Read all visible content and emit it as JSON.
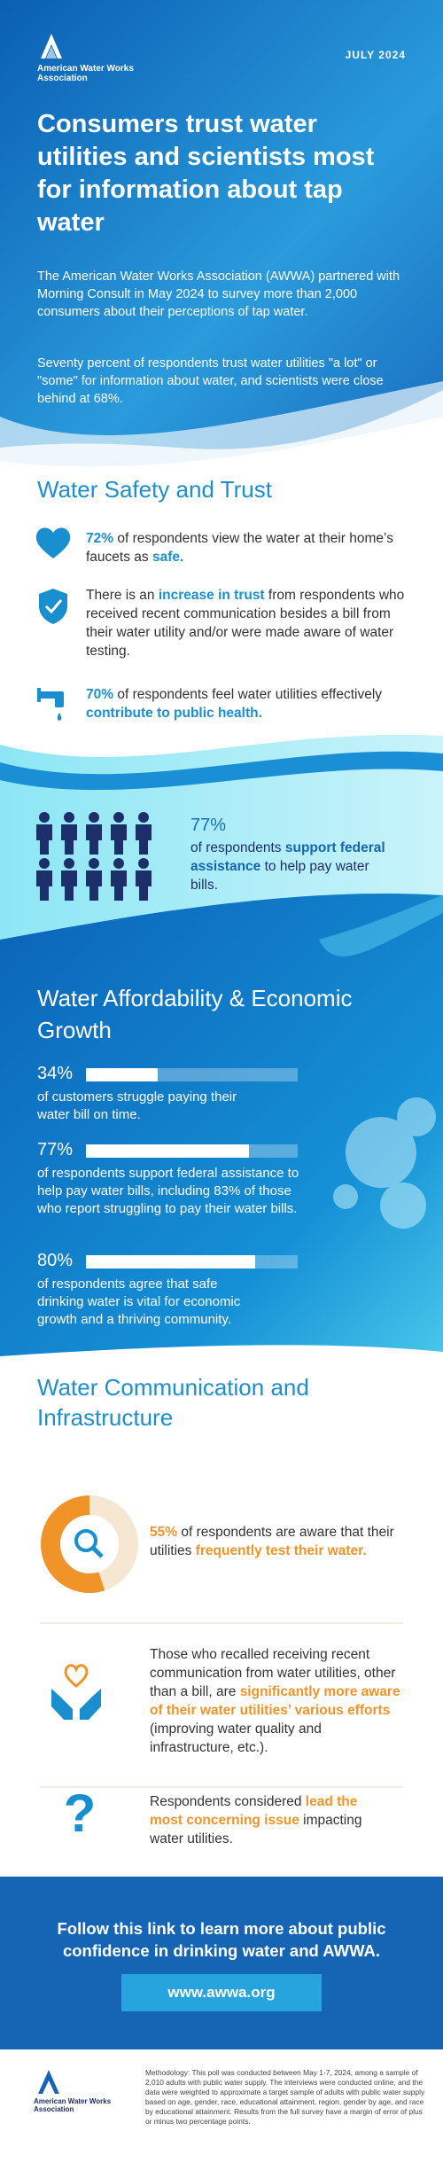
{
  "header": {
    "org": "American Water Works Association",
    "date": "JULY 2024",
    "title": "Consumers trust water utilities and scientists most for information about tap water",
    "paragraphs": [
      "The American Water Works Association (AWWA) partnered with Morning Consult in May 2024 to survey more than 2,000 consumers about their perceptions of tap water.",
      "Seventy percent of respondents trust water utilities \"a lot\" or \"some\" for information about water, and scientists were close behind at 68%."
    ]
  },
  "safety": {
    "heading": "Water Safety and Trust",
    "items": [
      {
        "parts": [
          "72%",
          " of respondents view the water at their home’s faucets as ",
          "safe."
        ]
      },
      {
        "parts": [
          "There is an ",
          "increase in trust",
          " from respondents who received recent communication besides a bill from their water utility and/or were made aware of water testing."
        ]
      },
      {
        "parts": [
          "70%",
          " of respondents feel water utilities effectively ",
          "contribute to public health."
        ]
      }
    ],
    "callout": {
      "label": "77%",
      "parts": [
        "of respondents ",
        "support federal assistance",
        " to help pay water bills."
      ]
    }
  },
  "affordability": {
    "heading": "Water Affordability & Economic Growth",
    "items": [
      {
        "value": 34,
        "label": "34%",
        "text": "of customers struggle paying their water bill on time."
      },
      {
        "value": 77,
        "label": "77%",
        "text": "of respondents support federal assistance to help pay water bills, including 83% of those who report struggling to pay their water bills."
      },
      {
        "value": 80,
        "label": "80%",
        "text": "of respondents agree that safe drinking water is vital for economic growth and a thriving community."
      }
    ]
  },
  "communication": {
    "heading": "Water Communication and Infrastructure",
    "aware": {
      "value": 55,
      "label": "55%",
      "parts": [
        " of respondents are aware that their utilities ",
        "frequently test their water."
      ]
    },
    "items": [
      {
        "parts": [
          "Those who recalled receiving recent communication from water utilities, other than a bill, are ",
          "significantly more aware of their water utilities’ various efforts",
          " (improving water quality and infrastructure, etc.)."
        ]
      },
      {
        "parts": [
          "Respondents considered ",
          "lead the most concerning issue",
          " impacting water utilities."
        ]
      }
    ]
  },
  "cta": {
    "text": "Follow this link to learn more about public confidence in drinking water and AWWA.",
    "link": "www.awwa.org"
  },
  "footer": {
    "org": "American Water Works Association",
    "methodology": "Methodology: This poll was conducted between May 1-7, 2024, among a sample of 2,010 adults with public water supply. The interviews were conducted online, and the data were weighted to approximate a target sample of adults with public water supply based on age, gender, race, educational attainment, region, gender by age, and race by educational attainment. Results from the full survey have a margin of error of plus or minus two percentage points."
  }
}
